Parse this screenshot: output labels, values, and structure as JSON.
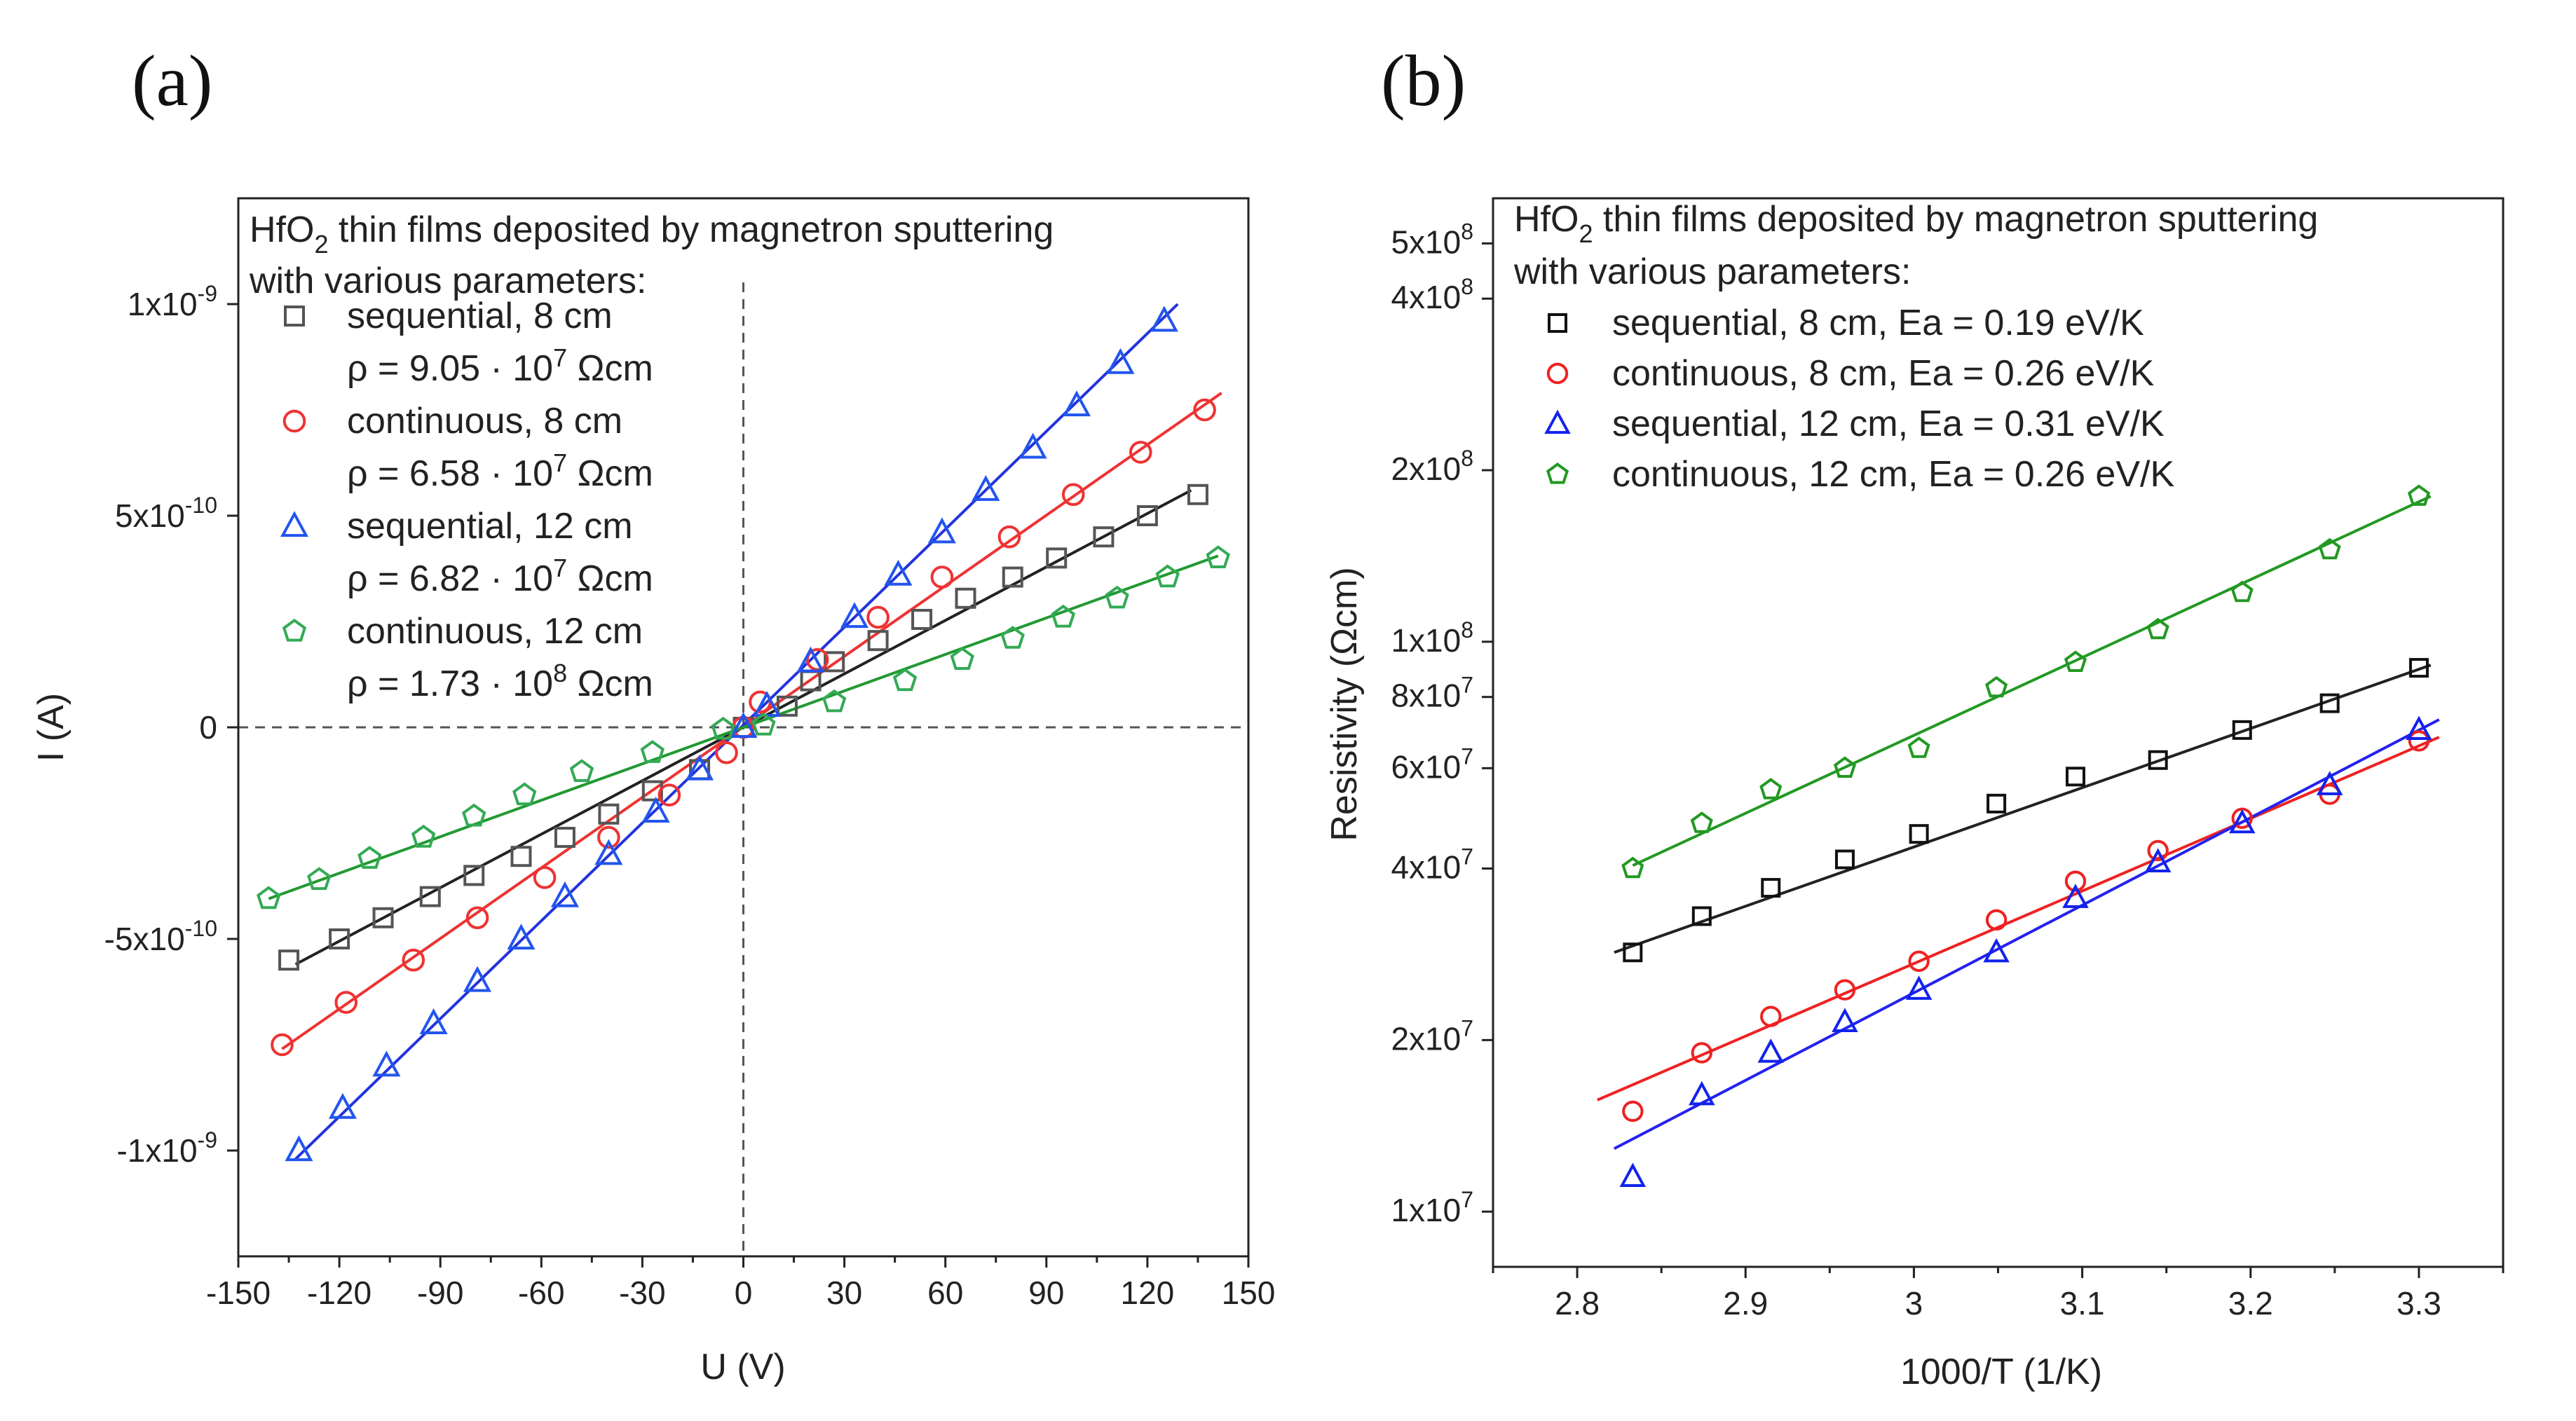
{
  "chart_data": [
    {
      "panel_label": "(a)",
      "type": "scatter",
      "xlabel": "U (V)",
      "ylabel": "I (A)",
      "xlim": [
        -150,
        150
      ],
      "ylim": [
        -1.25e-09,
        1.25e-09
      ],
      "x_ticks": [
        {
          "value": -150,
          "label": "-150"
        },
        {
          "value": -120,
          "label": "-120"
        },
        {
          "value": -90,
          "label": "-90"
        },
        {
          "value": -60,
          "label": "-60"
        },
        {
          "value": -30,
          "label": "-30"
        },
        {
          "value": 0,
          "label": "0"
        },
        {
          "value": 30,
          "label": "30"
        },
        {
          "value": 60,
          "label": "60"
        },
        {
          "value": 90,
          "label": "90"
        },
        {
          "value": 120,
          "label": "120"
        },
        {
          "value": 150,
          "label": "150"
        }
      ],
      "y_ticks": [
        {
          "value": 1e-09,
          "mantissa": "1x10",
          "exp": "-9"
        },
        {
          "value": 5e-10,
          "mantissa": "5x10",
          "exp": "-10"
        },
        {
          "value": 0,
          "mantissa": "0",
          "exp": ""
        },
        {
          "value": -5e-10,
          "mantissa": "-5x10",
          "exp": "-10"
        },
        {
          "value": -1e-09,
          "mantissa": "-1x10",
          "exp": "-9"
        }
      ],
      "legend": {
        "position": "top-left",
        "title_line1_pre": "HfO",
        "title_line1_sub": "2",
        "title_line1_post": " thin films deposited by magnetron sputtering",
        "title_line2": "with various parameters:",
        "entries": [
          {
            "label": "sequential,  8 cm",
            "rho_pre": "ρ = 9.05 · 10",
            "rho_exp": "7",
            "rho_post": " Ωcm"
          },
          {
            "label": "continuous, 8 cm",
            "rho_pre": "ρ = 6.58 · 10",
            "rho_exp": "7",
            "rho_post": " Ωcm"
          },
          {
            "label": "sequential,  12 cm",
            "rho_pre": "ρ = 6.82 · 10",
            "rho_exp": "7",
            "rho_post": " Ωcm"
          },
          {
            "label": "continuous, 12 cm",
            "rho_pre": "ρ = 1.73 · 10",
            "rho_exp": "8",
            "rho_post": " Ωcm"
          }
        ]
      },
      "series": [
        {
          "name": "sequential, 8 cm",
          "marker": "square",
          "color": "#555555",
          "line_color": "#222222",
          "x": [
            -135,
            -120,
            -107,
            -93,
            -80,
            -66,
            -53,
            -40,
            -27,
            -13,
            0,
            13,
            20,
            27,
            40,
            53,
            66,
            80,
            93,
            107,
            120,
            135
          ],
          "y": [
            -5.5e-10,
            -5e-10,
            -4.5e-10,
            -4e-10,
            -3.5e-10,
            -3.05e-10,
            -2.6e-10,
            -2.05e-10,
            -1.5e-10,
            -1e-10,
            0,
            5e-11,
            1.1e-10,
            1.55e-10,
            2.05e-10,
            2.55e-10,
            3.05e-10,
            3.55e-10,
            4e-10,
            4.5e-10,
            5e-10,
            5.5e-10
          ],
          "fit_x": [
            -133,
            133
          ],
          "fit_y": [
            -5.6e-10,
            5.6e-10
          ]
        },
        {
          "name": "continuous, 8 cm",
          "marker": "circle",
          "color": "#ee3333",
          "line_color": "#ee3333",
          "x": [
            -137,
            -118,
            -98,
            -79,
            -59,
            -40,
            -22,
            -5,
            0,
            5,
            22,
            40,
            59,
            79,
            98,
            118,
            137
          ],
          "y": [
            -7.5e-10,
            -6.5e-10,
            -5.5e-10,
            -4.5e-10,
            -3.55e-10,
            -2.6e-10,
            -1.6e-10,
            -6e-11,
            0,
            6e-11,
            1.6e-10,
            2.6e-10,
            3.55e-10,
            4.5e-10,
            5.5e-10,
            6.5e-10,
            7.5e-10
          ],
          "fit_x": [
            -137,
            142
          ],
          "fit_y": [
            -7.6e-10,
            7.9e-10
          ]
        },
        {
          "name": "sequential, 12 cm",
          "marker": "triangle",
          "color": "#2255ee",
          "line_color": "#2233dd",
          "x": [
            -132,
            -119,
            -106,
            -92,
            -79,
            -66,
            -53,
            -40,
            -26,
            -13,
            0,
            7,
            20,
            33,
            46,
            59,
            72,
            86,
            99,
            112,
            125
          ],
          "y": [
            -1e-09,
            -9e-10,
            -8e-10,
            -7e-10,
            -6e-10,
            -5e-10,
            -4e-10,
            -3e-10,
            -2e-10,
            -1e-10,
            0,
            5e-11,
            1.55e-10,
            2.6e-10,
            3.6e-10,
            4.6e-10,
            5.6e-10,
            6.6e-10,
            7.6e-10,
            8.6e-10,
            9.6e-10
          ],
          "fit_x": [
            -133,
            129
          ],
          "fit_y": [
            -1.02e-09,
            1e-09
          ]
        },
        {
          "name": "continuous, 12 cm",
          "marker": "pentagon",
          "color": "#33aa55",
          "line_color": "#229933",
          "x": [
            -141,
            -126,
            -111,
            -95,
            -80,
            -65,
            -48,
            -27,
            -6,
            6,
            27,
            48,
            65,
            80,
            95,
            111,
            126,
            141
          ],
          "y": [
            -4.05e-10,
            -3.6e-10,
            -3.1e-10,
            -2.6e-10,
            -2.1e-10,
            -1.6e-10,
            -1.05e-10,
            -6e-11,
            -5e-12,
            5e-12,
            6e-11,
            1.1e-10,
            1.6e-10,
            2.1e-10,
            2.6e-10,
            3.05e-10,
            3.55e-10,
            4e-10
          ],
          "fit_x": [
            -141,
            141
          ],
          "fit_y": [
            -4.05e-10,
            4.05e-10
          ]
        }
      ]
    },
    {
      "panel_label": "(b)",
      "type": "scatter",
      "xlabel": "1000/T (1/K)",
      "ylabel": "Resistivity (Ωcm)",
      "xlim": [
        2.75,
        3.35
      ],
      "ylim": [
        8000000.0,
        600000000.0
      ],
      "yscale": "log",
      "x_ticks": [
        {
          "value": 2.8,
          "label": "2.8"
        },
        {
          "value": 2.9,
          "label": "2.9"
        },
        {
          "value": 3.0,
          "label": "3"
        },
        {
          "value": 3.1,
          "label": "3.1"
        },
        {
          "value": 3.2,
          "label": "3.2"
        },
        {
          "value": 3.3,
          "label": "3.3"
        }
      ],
      "y_ticks": [
        {
          "value": 500000000.0,
          "mantissa": "5x10",
          "exp": "8"
        },
        {
          "value": 400000000.0,
          "mantissa": "4x10",
          "exp": "8"
        },
        {
          "value": 200000000.0,
          "mantissa": "2x10",
          "exp": "8"
        },
        {
          "value": 100000000.0,
          "mantissa": "1x10",
          "exp": "8"
        },
        {
          "value": 80000000.0,
          "mantissa": "8x10",
          "exp": "7"
        },
        {
          "value": 60000000.0,
          "mantissa": "6x10",
          "exp": "7"
        },
        {
          "value": 40000000.0,
          "mantissa": "4x10",
          "exp": "7"
        },
        {
          "value": 20000000.0,
          "mantissa": "2x10",
          "exp": "7"
        },
        {
          "value": 10000000.0,
          "mantissa": "1x10",
          "exp": "7"
        }
      ],
      "legend": {
        "position": "top-left",
        "title_line1_pre": "HfO",
        "title_line1_sub": "2",
        "title_line1_post": " thin films deposited by magnetron sputtering",
        "title_line2": "with various parameters:",
        "entries": [
          {
            "label": "sequential, 8 cm, Ea = 0.19 eV/K"
          },
          {
            "label": "continuous, 8 cm, Ea = 0.26 eV/K"
          },
          {
            "label": "sequential, 12 cm, Ea = 0.31 eV/K"
          },
          {
            "label": "continuous, 12 cm, Ea = 0.26 eV/K"
          }
        ]
      },
      "series": [
        {
          "name": "sequential, 8 cm",
          "marker": "square",
          "color": "#111111",
          "line_color": "#222222",
          "x": [
            2.833,
            2.874,
            2.915,
            2.959,
            3.003,
            3.049,
            3.096,
            3.145,
            3.195,
            3.247,
            3.3
          ],
          "y": [
            28500000.0,
            33000000.0,
            37000000.0,
            41500000.0,
            46000000.0,
            52000000.0,
            58000000.0,
            62000000.0,
            70000000.0,
            78000000.0,
            90000000.0
          ],
          "fit_x": [
            2.822,
            3.307
          ],
          "fit_y": [
            28500000.0,
            91000000.0
          ]
        },
        {
          "name": "continuous, 8 cm",
          "marker": "circle",
          "color": "#ee2222",
          "line_color": "#ee2222",
          "x": [
            2.833,
            2.874,
            2.915,
            2.959,
            3.003,
            3.049,
            3.096,
            3.145,
            3.195,
            3.247,
            3.3
          ],
          "y": [
            15000000.0,
            19000000.0,
            22000000.0,
            24500000.0,
            27500000.0,
            32500000.0,
            38000000.0,
            43000000.0,
            49000000.0,
            54000000.0,
            67000000.0
          ],
          "fit_x": [
            2.812,
            3.312
          ],
          "fit_y": [
            15700000.0,
            68000000.0
          ]
        },
        {
          "name": "sequential, 12 cm",
          "marker": "triangle",
          "color": "#1122ee",
          "line_color": "#2222ee",
          "x": [
            2.833,
            2.874,
            2.915,
            2.959,
            3.003,
            3.049,
            3.096,
            3.145,
            3.195,
            3.247,
            3.3
          ],
          "y": [
            11500000.0,
            16000000.0,
            19000000.0,
            21500000.0,
            24500000.0,
            28500000.0,
            35500000.0,
            41000000.0,
            48000000.0,
            56000000.0,
            70000000.0
          ],
          "fit_x": [
            2.822,
            3.312
          ],
          "fit_y": [
            12900000.0,
            73000000.0
          ]
        },
        {
          "name": "continuous, 12 cm",
          "marker": "pentagon",
          "color": "#229922",
          "line_color": "#229922",
          "x": [
            2.833,
            2.874,
            2.915,
            2.959,
            3.003,
            3.049,
            3.096,
            3.145,
            3.195,
            3.247,
            3.3
          ],
          "y": [
            40000000.0,
            48000000.0,
            55000000.0,
            60000000.0,
            65000000.0,
            83000000.0,
            92000000.0,
            105000000.0,
            122000000.0,
            145000000.0,
            180000000.0
          ],
          "fit_x": [
            2.833,
            3.307
          ],
          "fit_y": [
            40500000.0,
            180000000.0
          ]
        }
      ]
    }
  ]
}
